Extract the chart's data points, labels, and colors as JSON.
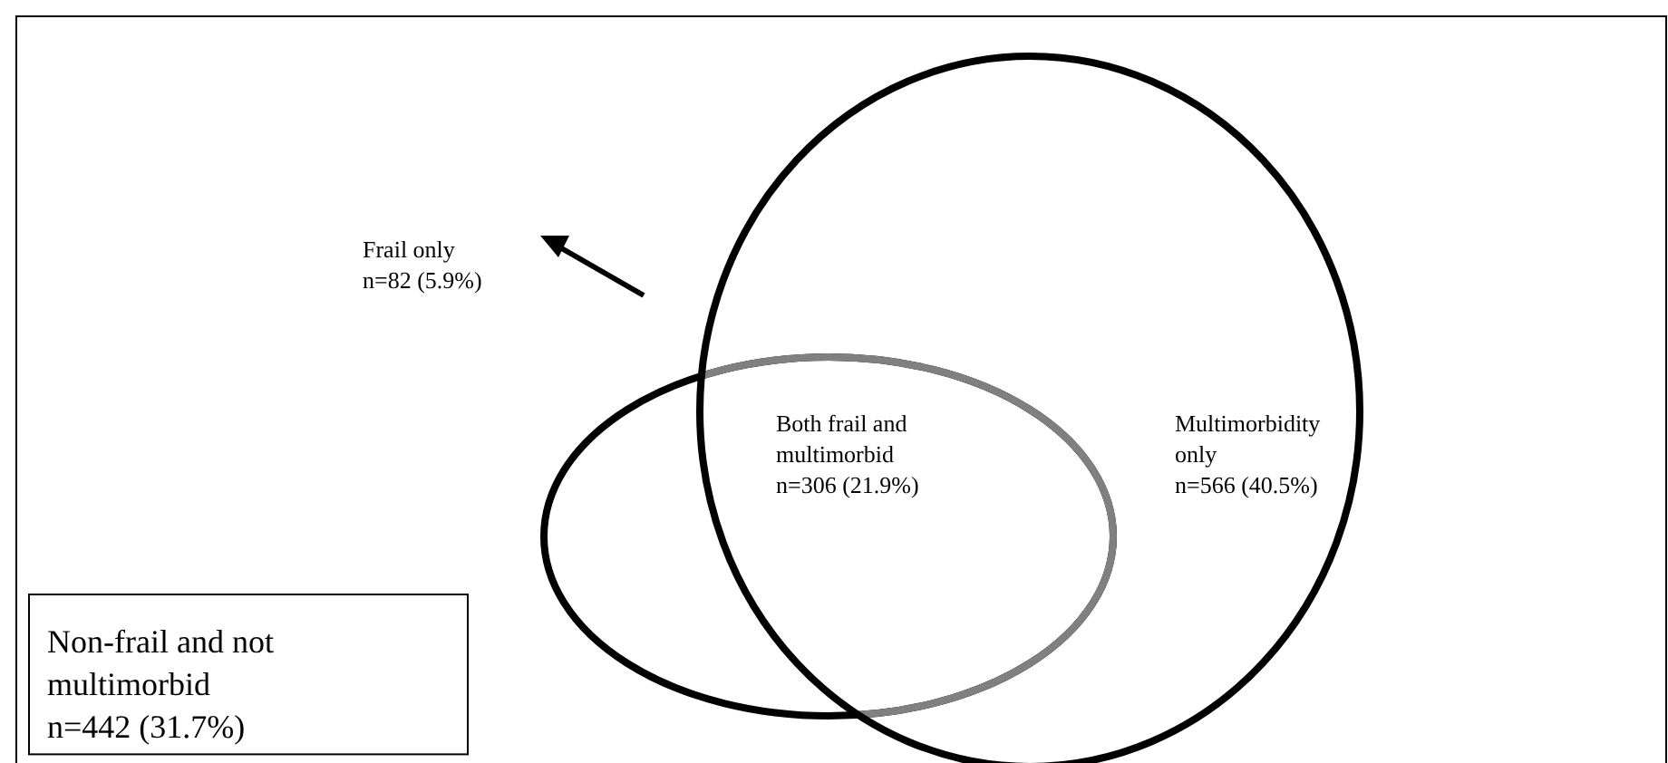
{
  "chart_data": {
    "type": "other",
    "categories": [
      "Frail only",
      "Both frail and multimorbid",
      "Multimorbidity only",
      "Non-frail and not multimorbid"
    ],
    "values": [
      82,
      306,
      566,
      442
    ],
    "value_labels": [
      "n=82 (5.9%)",
      "n=306 (21.9%)",
      "n=566 (40.5%)",
      "n=442 (31.7%)"
    ],
    "colors": [
      "#000000",
      "#808080",
      "#000000",
      "#000000"
    ]
  }
}
